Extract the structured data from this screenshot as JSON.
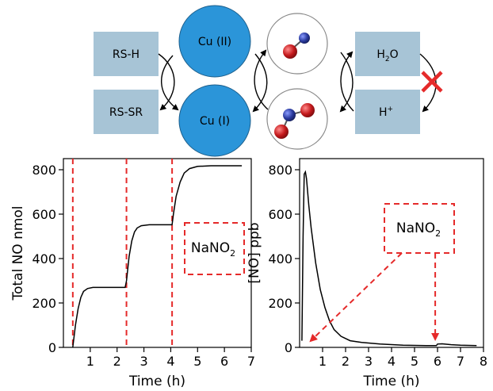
{
  "scheme": {
    "boxes": {
      "rs_h": "RS-H",
      "rs_sr": "RS-SR",
      "h2o_main": "H",
      "h2o_sub": "2",
      "h2o_tail": "O",
      "hplus_main": "H",
      "hplus_sup": "+"
    },
    "circles": {
      "cu2": "Cu (II)",
      "cu1": "Cu (I)"
    },
    "colors": {
      "box": "#a7c4d6",
      "copper": "#2b95d9",
      "oxygen": "#c4191c",
      "nitrogen": "#2a3a9e",
      "cross": "#e52a2a"
    }
  },
  "chart_data": [
    {
      "type": "line",
      "title": "",
      "xlabel": "Time (h)",
      "ylabel": "Total NO nmol",
      "xlim": [
        0,
        7
      ],
      "ylim": [
        0,
        850
      ],
      "xticks": [
        1,
        2,
        3,
        4,
        5,
        6,
        7
      ],
      "yticks": [
        0,
        200,
        400,
        600,
        800
      ],
      "series": [
        {
          "color": "#000000",
          "x": [
            0.35,
            0.45,
            0.55,
            0.65,
            0.75,
            0.9,
            1.1,
            2.3,
            2.35,
            2.45,
            2.55,
            2.65,
            2.75,
            2.9,
            3.2,
            4.05,
            4.1,
            4.2,
            4.35,
            4.5,
            4.7,
            5.0,
            5.5,
            6.65
          ],
          "y": [
            0,
            100,
            175,
            225,
            252,
            265,
            270,
            270,
            300,
            410,
            480,
            520,
            538,
            548,
            552,
            552,
            600,
            680,
            745,
            785,
            805,
            815,
            818,
            818
          ]
        }
      ],
      "annotations": {
        "marker_lines_x": [
          0.35,
          2.35,
          4.05
        ],
        "box_label_main": "NaNO",
        "box_label_sub": "2"
      },
      "colors": {
        "marker": "#e52a2a"
      }
    },
    {
      "type": "line",
      "title": "",
      "xlabel": "Time (h)",
      "ylabel": "[NO] ppb",
      "xlim": [
        0,
        8
      ],
      "ylim": [
        0,
        850
      ],
      "xticks": [
        1,
        2,
        3,
        4,
        5,
        6,
        7,
        8
      ],
      "yticks": [
        0,
        200,
        400,
        600,
        800
      ],
      "series": [
        {
          "color": "#000000",
          "x": [
            0.1,
            0.15,
            0.2,
            0.25,
            0.3,
            0.4,
            0.5,
            0.7,
            0.9,
            1.1,
            1.3,
            1.5,
            1.8,
            2.2,
            2.7,
            3.5,
            4.5,
            5.5,
            5.95,
            6.0,
            6.2,
            6.6,
            7.0,
            7.7
          ],
          "y": [
            30,
            500,
            780,
            790,
            760,
            640,
            540,
            380,
            260,
            180,
            120,
            80,
            50,
            30,
            22,
            15,
            10,
            8,
            8,
            15,
            16,
            12,
            10,
            8
          ]
        }
      ],
      "annotations": {
        "arrow_targets_x": [
          0.2,
          5.9
        ],
        "box_label_main": "NaNO",
        "box_label_sub": "2"
      },
      "colors": {
        "marker": "#e52a2a"
      }
    }
  ]
}
